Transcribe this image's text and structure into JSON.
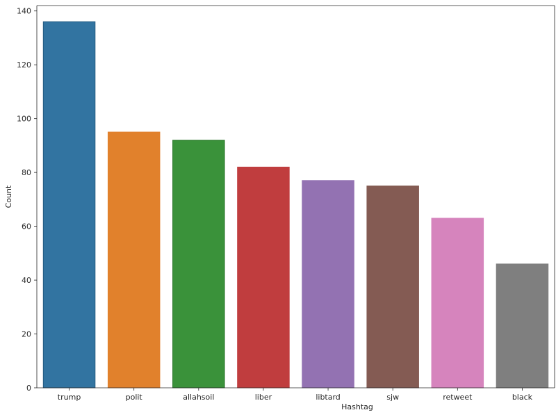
{
  "chart_data": {
    "type": "bar",
    "categories": [
      "trump",
      "polit",
      "allahsoil",
      "liber",
      "libtard",
      "sjw",
      "retweet",
      "black"
    ],
    "values": [
      136,
      95,
      92,
      82,
      77,
      75,
      63,
      46
    ],
    "colors": [
      "#3274a1",
      "#e1812c",
      "#3a923a",
      "#c03d3e",
      "#9372b2",
      "#845b53",
      "#d684bd",
      "#7f7f7f"
    ],
    "edge_colors": [
      "#235a80",
      "#e1812c",
      "#2f7a2f",
      "#c03d3e",
      "#9372b2",
      "#845b53",
      "#d684bd",
      "#7f7f7f"
    ],
    "xlabel": "Hashtag",
    "ylabel": "Count",
    "ylim": [
      0,
      142
    ],
    "yticks": [
      0,
      20,
      40,
      60,
      80,
      100,
      120,
      140
    ],
    "grid": false
  }
}
